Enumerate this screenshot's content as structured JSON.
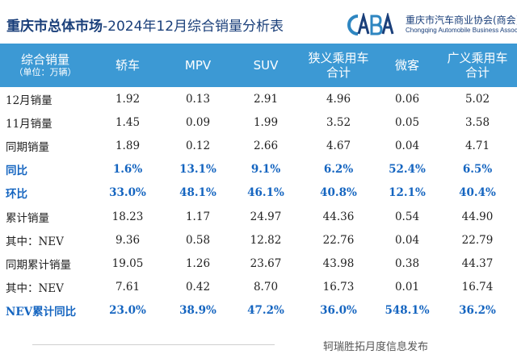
{
  "title": {
    "bold_part": "重庆市总体市场",
    "rest": "-2024年12月综合销量分析表"
  },
  "logo": {
    "mark_text": "CABA",
    "name_cn": "重庆市汽车商业协会(商会)",
    "name_en": "Chongqing Automobile Business Association"
  },
  "table": {
    "header": {
      "label_main": "综合销量",
      "label_unit": "（单位：万辆）",
      "columns": [
        {
          "line1": "轿车",
          "line2": ""
        },
        {
          "line1": "MPV",
          "line2": ""
        },
        {
          "line1": "SUV",
          "line2": ""
        },
        {
          "line1": "狭义乘用车",
          "line2": "合计"
        },
        {
          "line1": "微客",
          "line2": ""
        },
        {
          "line1": "广义乘用车",
          "line2": "合计"
        }
      ]
    },
    "rows": [
      {
        "label": "12月销量",
        "values": [
          "1.92",
          "0.13",
          "2.91",
          "4.96",
          "0.06",
          "5.02"
        ]
      },
      {
        "label": "11月销量",
        "values": [
          "1.45",
          "0.09",
          "1.99",
          "3.52",
          "0.05",
          "3.58"
        ]
      },
      {
        "label": "同期销量",
        "values": [
          "1.89",
          "0.12",
          "2.66",
          "4.67",
          "0.04",
          "4.71"
        ]
      },
      {
        "label": "同比",
        "values": [
          "1.6%",
          "13.1%",
          "9.1%",
          "6.2%",
          "52.4%",
          "6.5%"
        ]
      },
      {
        "label": "环比",
        "values": [
          "33.0%",
          "48.1%",
          "46.1%",
          "40.8%",
          "12.1%",
          "40.4%"
        ]
      },
      {
        "label": "累计销量",
        "values": [
          "18.23",
          "1.17",
          "24.97",
          "44.36",
          "0.54",
          "44.90"
        ]
      },
      {
        "label": "其中：NEV",
        "values": [
          "9.36",
          "0.58",
          "12.82",
          "22.76",
          "0.04",
          "22.79"
        ]
      },
      {
        "label": "同期累计销量",
        "values": [
          "19.05",
          "1.26",
          "23.67",
          "43.98",
          "0.38",
          "44.37"
        ]
      },
      {
        "label": "其中：NEV",
        "values": [
          "7.61",
          "0.42",
          "8.70",
          "16.73",
          "0.01",
          "16.74"
        ]
      },
      {
        "label": "NEV累计同比",
        "values": [
          "23.0%",
          "38.9%",
          "47.2%",
          "36.0%",
          "548.1%",
          "36.2%"
        ]
      }
    ]
  },
  "footer": {
    "text": "轲瑞胜拓月度信息发布"
  },
  "colors": {
    "header_bg": "#3c99d4",
    "title": "#1a3f7a",
    "highlight": "#1565c0",
    "logo_accent": "#2e86c1"
  }
}
